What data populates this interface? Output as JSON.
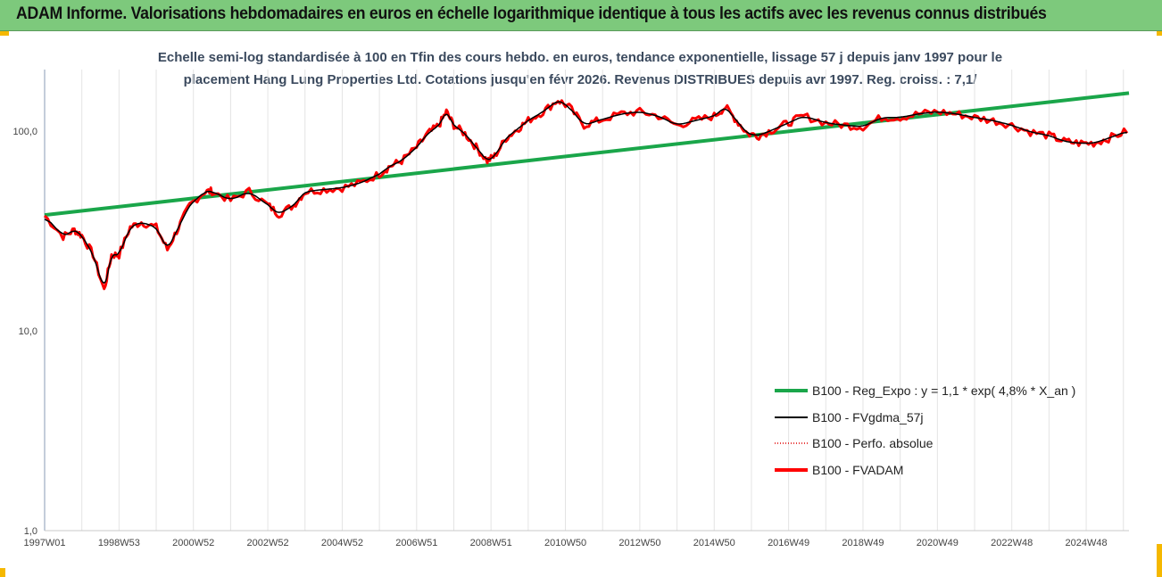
{
  "header": {
    "title": "ADAM Informe. Valorisations hebdomadaires en euros en échelle logarithmique identique à tous les actifs avec les revenus connus distribués"
  },
  "chart_data": {
    "type": "line",
    "title_lines": [
      "Echelle semi-log standardisée à 100 en Tfin des cours hebdo. en euros, tendance exponentielle, lissage 57 j depuis janv 1997 pour le",
      "placement Hang Lung Properties Ltd. Cotations jusqu'en févr 2026.  Revenus DISTRIBUES depuis avr 1997. Reg. croiss. : 7,1/"
    ],
    "yscale": "log",
    "ylim": [
      1,
      200
    ],
    "yticks": [
      "1,0",
      "10,0",
      "100,0"
    ],
    "xlim": [
      1997.0,
      2026.15
    ],
    "xticks": [
      {
        "label": "1997W01",
        "x": 1997.0
      },
      {
        "label": "1998W53",
        "x": 1999.0
      },
      {
        "label": "2000W52",
        "x": 2001.0
      },
      {
        "label": "2002W52",
        "x": 2003.0
      },
      {
        "label": "2004W52",
        "x": 2005.0
      },
      {
        "label": "2006W51",
        "x": 2007.0
      },
      {
        "label": "2008W51",
        "x": 2009.0
      },
      {
        "label": "2010W50",
        "x": 2011.0
      },
      {
        "label": "2012W50",
        "x": 2013.0
      },
      {
        "label": "2014W50",
        "x": 2015.0
      },
      {
        "label": "2016W49",
        "x": 2017.0
      },
      {
        "label": "2018W49",
        "x": 2019.0
      },
      {
        "label": "2020W49",
        "x": 2021.0
      },
      {
        "label": "2022W48",
        "x": 2023.0
      },
      {
        "label": "2024W48",
        "x": 2025.0
      }
    ],
    "legend_position": "bottom-right",
    "series": [
      {
        "name": "B100 - Reg_Expo : y = 1,1 * exp( 4,8% *  X_an )",
        "color": "#1aa64a",
        "style": "solid-thick",
        "x": [
          1997.0,
          2026.15
        ],
        "y": [
          38,
          155
        ]
      },
      {
        "name": "B100 - FVgdma_57j",
        "color": "#000000",
        "style": "solid-thin",
        "smoothed_of": "B100 - FVADAM"
      },
      {
        "name": "B100 - Perfo. absolue",
        "color": "#e00000",
        "style": "dotted"
      },
      {
        "name": "B100 - FVADAM",
        "color": "#ff0000",
        "style": "solid-thick",
        "x": [
          1997.0,
          1997.5,
          1997.8,
          1998.0,
          1998.3,
          1998.6,
          1998.8,
          1999.0,
          1999.3,
          1999.6,
          2000.0,
          2000.3,
          2000.6,
          2000.9,
          2001.3,
          2001.5,
          2002.0,
          2002.5,
          2003.0,
          2003.3,
          2003.7,
          2004.0,
          2004.5,
          2005.0,
          2005.5,
          2006.0,
          2006.3,
          2006.6,
          2007.0,
          2007.3,
          2007.6,
          2007.8,
          2008.0,
          2008.3,
          2008.6,
          2008.9,
          2009.1,
          2009.4,
          2009.7,
          2010.0,
          2010.4,
          2010.8,
          2011.1,
          2011.5,
          2011.9,
          2012.5,
          2013.0,
          2013.5,
          2014.0,
          2014.5,
          2015.0,
          2015.3,
          2015.6,
          2015.9,
          2016.2,
          2016.6,
          2017.0,
          2017.4,
          2018.0,
          2018.5,
          2019.0,
          2019.5,
          2020.0,
          2020.5,
          2021.0,
          2021.5,
          2022.0,
          2022.5,
          2023.0,
          2023.5,
          2024.0,
          2024.4,
          2024.8,
          2025.2,
          2025.6,
          2026.1
        ],
        "y": [
          37.7,
          29.7,
          32,
          30,
          24.2,
          16,
          24,
          24,
          33,
          35,
          33,
          25.5,
          33,
          42.6,
          49.7,
          50,
          45,
          50,
          42.6,
          38.4,
          42.6,
          49.7,
          51,
          52,
          55,
          61,
          67,
          71,
          83,
          97,
          107,
          125,
          107,
          97,
          83,
          71,
          75,
          92,
          102,
          113,
          125,
          143,
          132,
          107,
          113,
          122,
          125,
          119,
          107,
          113,
          119,
          132,
          113,
          97,
          95,
          102,
          110,
          119,
          110,
          107,
          105,
          117,
          117,
          122,
          125,
          122,
          117,
          113,
          107,
          99,
          95,
          89,
          87,
          87,
          92,
          100
        ]
      }
    ]
  }
}
